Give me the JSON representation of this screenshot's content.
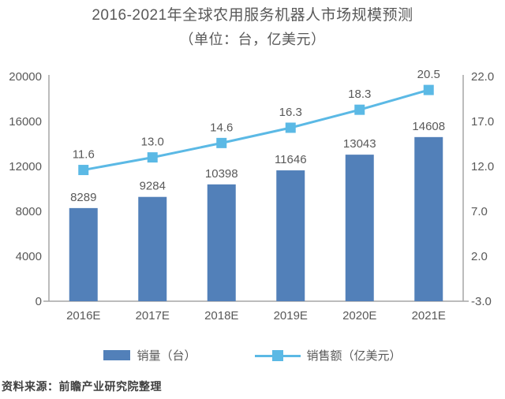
{
  "title": {
    "line1": "2016-2021年全球农用服务机器人市场规模预测",
    "line2": "（单位：台，亿美元）"
  },
  "source": "资料来源：前瞻产业研究院整理",
  "colors": {
    "bar": "#5280B9",
    "line": "#5BB9E5",
    "text": "#595959",
    "axis": "#A6A6A6"
  },
  "legend": {
    "items": [
      {
        "label": "销量（台）",
        "marker": "bar"
      },
      {
        "label": "销售额（亿美元）",
        "marker": "line-square"
      }
    ]
  },
  "chart_data": {
    "type": "combo_bar_line",
    "title": "2016-2021年全球农用服务机器人市场规模预测",
    "subtitle": "（单位：台，亿美元）",
    "categories": [
      "2016E",
      "2017E",
      "2018E",
      "2019E",
      "2020E",
      "2021E"
    ],
    "series": [
      {
        "name": "销量（台）",
        "type": "bar",
        "axis": "left",
        "values": [
          8289,
          9284,
          10398,
          11646,
          13043,
          14608
        ],
        "labels": [
          "8289",
          "9284",
          "10398",
          "11646",
          "13043",
          "14608"
        ]
      },
      {
        "name": "销售额（亿美元）",
        "type": "line",
        "axis": "right",
        "values": [
          11.6,
          13.0,
          14.6,
          16.3,
          18.3,
          20.5
        ],
        "labels": [
          "11.6",
          "13.0",
          "14.6",
          "16.3",
          "18.3",
          "20.5"
        ]
      }
    ],
    "left_axis": {
      "min": 0,
      "max": 20000,
      "step": 4000,
      "tick_labels": [
        "0",
        "4000",
        "8000",
        "12000",
        "16000",
        "20000"
      ]
    },
    "right_axis": {
      "min": -3,
      "max": 22,
      "step": 5,
      "tick_labels": [
        "-3.0",
        "2.0",
        "7.0",
        "12.0",
        "17.0",
        "22.0"
      ]
    },
    "grid": false,
    "legend_position": "bottom"
  }
}
